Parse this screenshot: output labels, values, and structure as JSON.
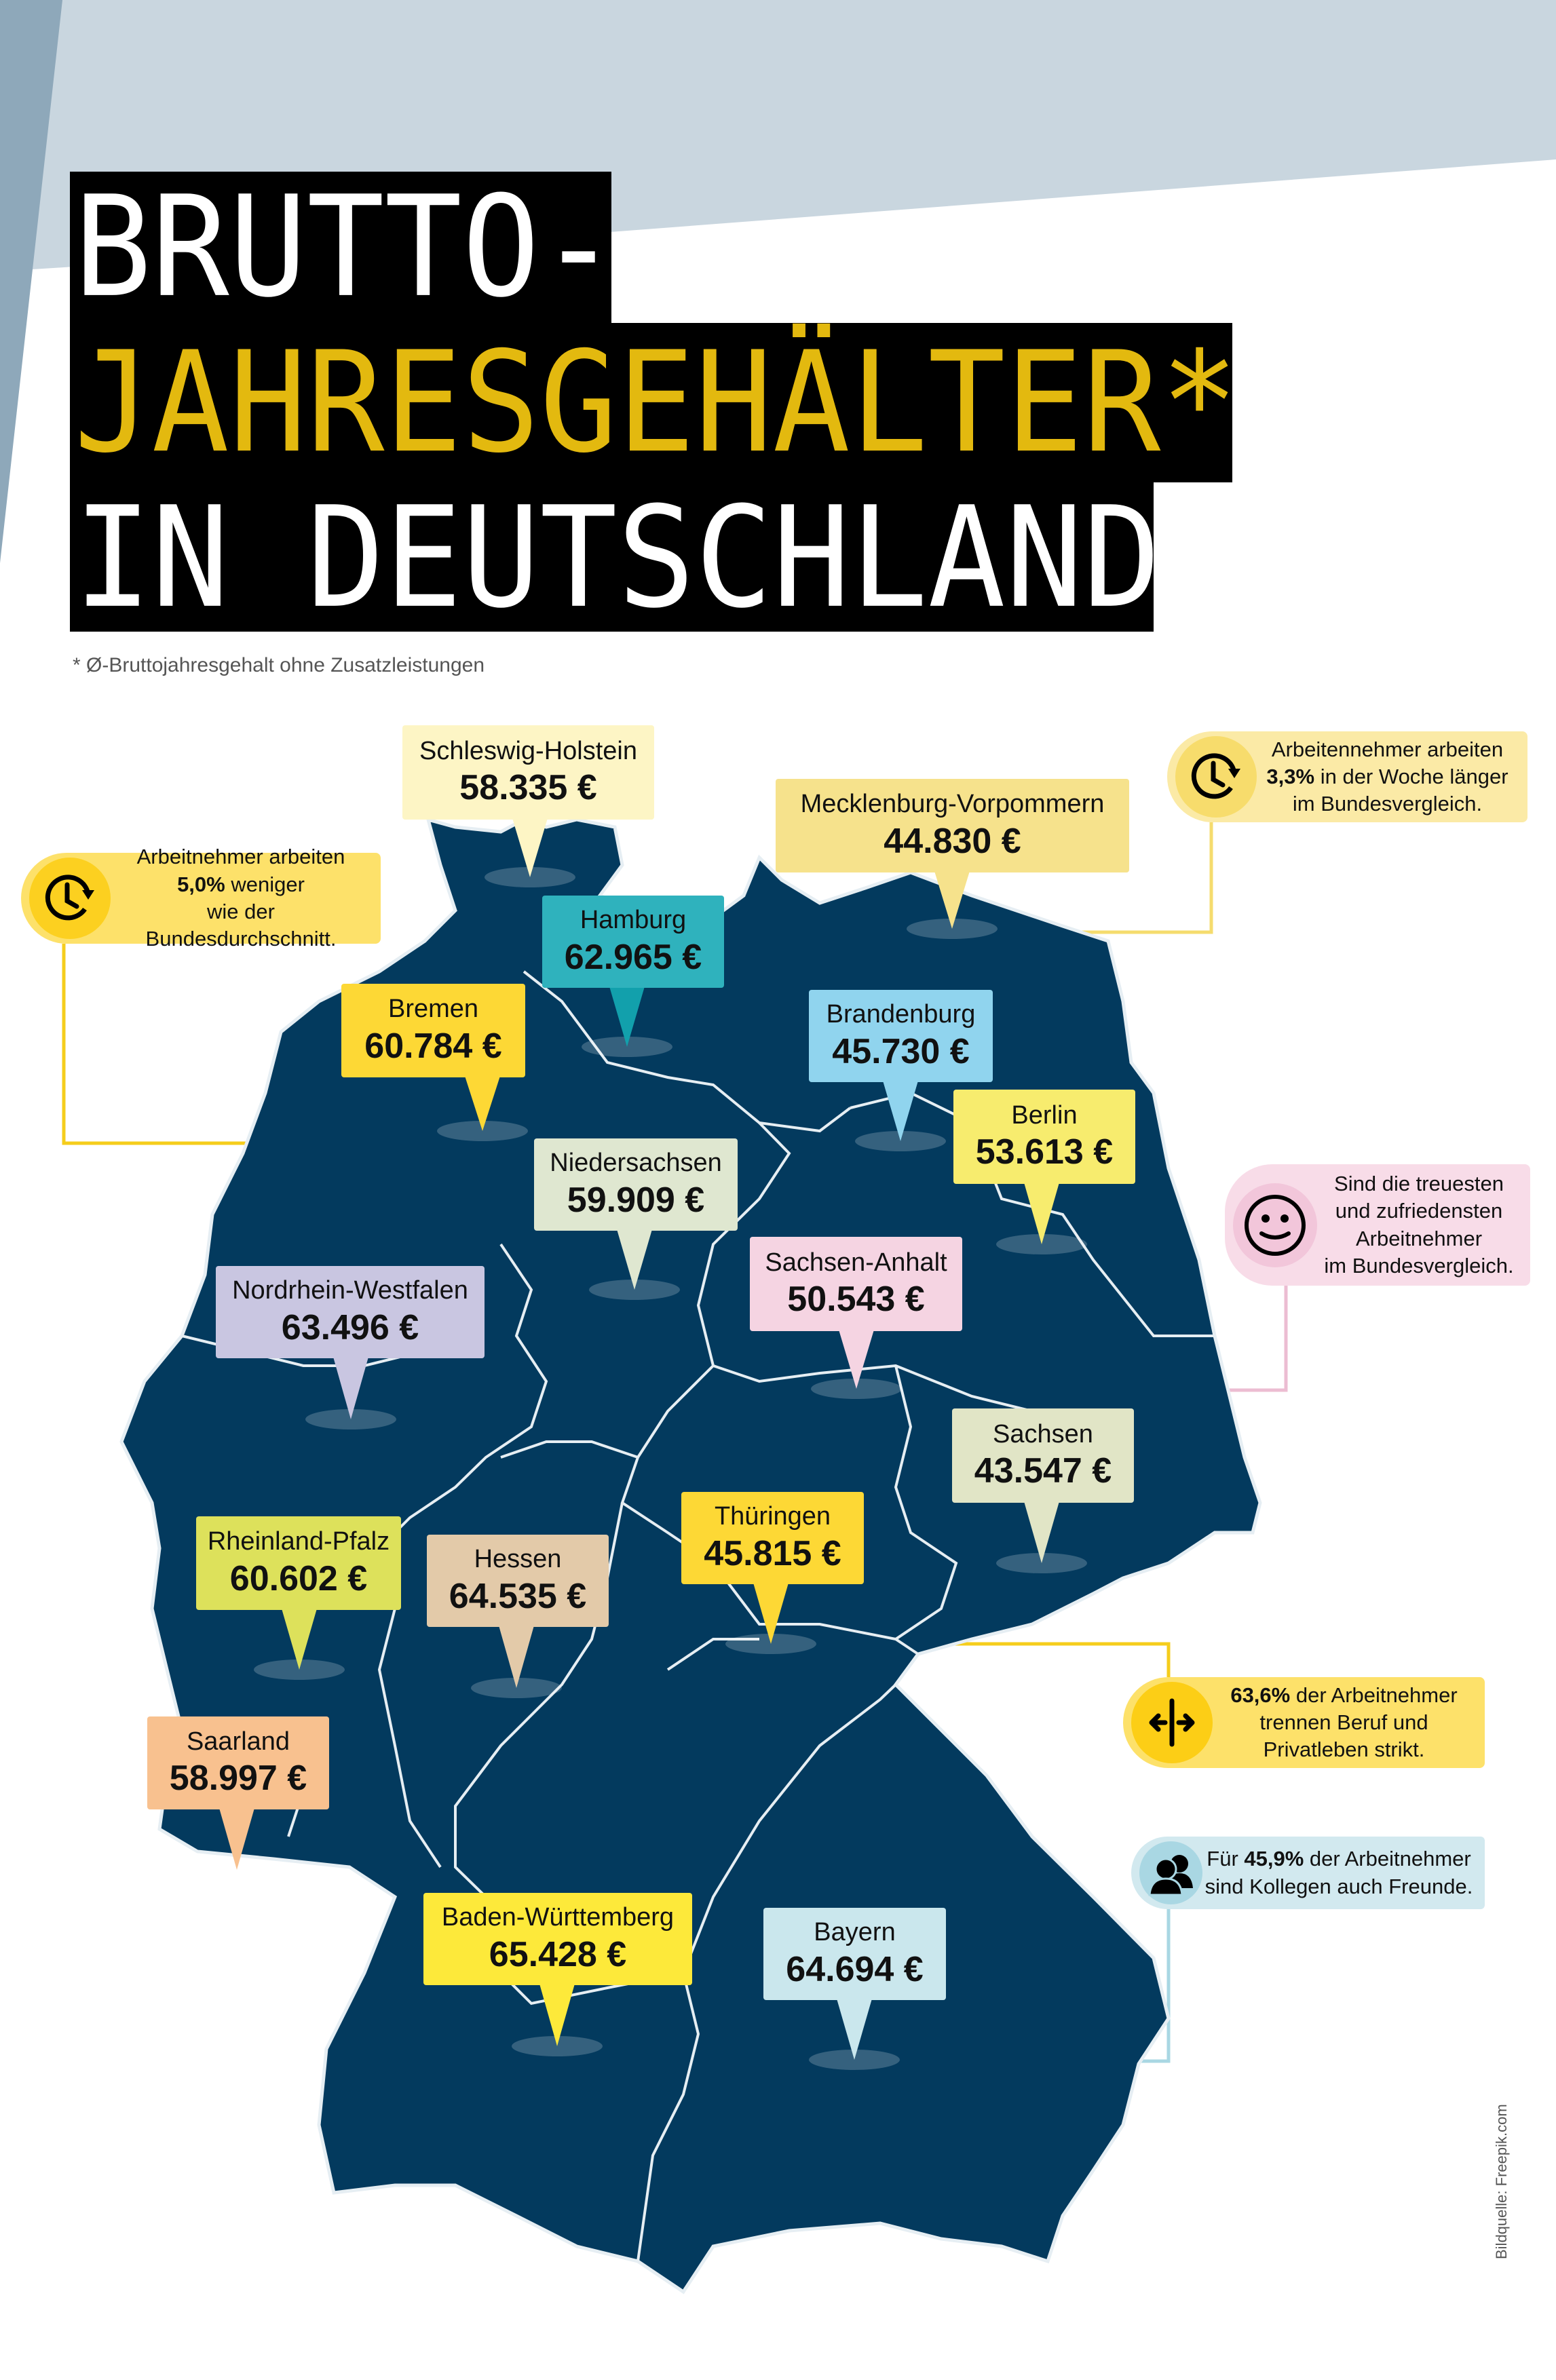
{
  "title": {
    "line1": "BRUTTO-",
    "line2": "JAHRESGEHÄLTER*",
    "line3": "IN DEUTSCHLAND",
    "line1_color": "#ffffff",
    "line2_color": "#e3b90f",
    "line3_color": "#ffffff"
  },
  "footnote": "* Ø-Bruttojahresgehalt ohne Zusatzleistungen",
  "colors": {
    "map": "#033a5e",
    "border": "#e6eef3",
    "bg_light": "#c9d6df",
    "bg_dark": "#8ea8ba"
  },
  "states": [
    {
      "name": "Schleswig-Holstein",
      "value": "58.335 €",
      "color": "#fdf5c5"
    },
    {
      "name": "Mecklenburg-Vorpommern",
      "value": "44.830 €",
      "color": "#f6e28c"
    },
    {
      "name": "Hamburg",
      "value": "62.965 €",
      "color": "#2fb2bd",
      "pointer": "#12a0ac"
    },
    {
      "name": "Bremen",
      "value": "60.784 €",
      "color": "#fdd835"
    },
    {
      "name": "Brandenburg",
      "value": "45.730 €",
      "color": "#90d4ee"
    },
    {
      "name": "Berlin",
      "value": "53.613 €",
      "color": "#f7ec6e"
    },
    {
      "name": "Niedersachsen",
      "value": "59.909 €",
      "color": "#dfe7d0"
    },
    {
      "name": "Sachsen-Anhalt",
      "value": "50.543 €",
      "color": "#f5d4e2"
    },
    {
      "name": "Nordrhein-Westfalen",
      "value": "63.496 €",
      "color": "#c9c6e1"
    },
    {
      "name": "Sachsen",
      "value": "43.547 €",
      "color": "#e1e5c6"
    },
    {
      "name": "Thüringen",
      "value": "45.815 €",
      "color": "#fdd835"
    },
    {
      "name": "Rheinland-Pfalz",
      "value": "60.602 €",
      "color": "#dde15b"
    },
    {
      "name": "Hessen",
      "value": "64.535 €",
      "color": "#e3caa9"
    },
    {
      "name": "Saarland",
      "value": "58.997 €",
      "color": "#f8c18f"
    },
    {
      "name": "Baden-Württemberg",
      "value": "65.428 €",
      "color": "#fde93a"
    },
    {
      "name": "Bayern",
      "value": "64.694 €",
      "color": "#cae7ed"
    }
  ],
  "facts": [
    {
      "icon": "clock-icon",
      "color": "#fde16a",
      "circle": "#fcd020",
      "line": "#f5cd1c",
      "lines": [
        [
          {
            "t": "Arbeitnehmer arbeiten"
          }
        ],
        [
          {
            "t": "5,0%",
            "b": true
          },
          {
            "t": " weniger"
          }
        ],
        [
          {
            "t": "wie der Bundesdurchschnitt."
          }
        ]
      ]
    },
    {
      "icon": "clock-icon",
      "color": "#fbeaa6",
      "circle": "#f7dc6c",
      "line": "#f5dc6e",
      "lines": [
        [
          {
            "t": "Arbeitennehmer arbeiten"
          }
        ],
        [
          {
            "t": "3,3%",
            "b": true
          },
          {
            "t": " in der Woche länger"
          }
        ],
        [
          {
            "t": "im Bundesvergleich."
          }
        ]
      ]
    },
    {
      "icon": "smiley-icon",
      "color": "#f8dce8",
      "circle": "#f2c6da",
      "line": "#ecbdd2",
      "lines": [
        [
          {
            "t": "Sind die treuesten"
          }
        ],
        [
          {
            "t": "und zufriedensten"
          }
        ],
        [
          {
            "t": "Arbeitnehmer"
          }
        ],
        [
          {
            "t": "im Bundesvergleich."
          }
        ]
      ]
    },
    {
      "icon": "split-arrows-icon",
      "color": "#fde16a",
      "circle": "#fcce16",
      "line": "#f5cd1c",
      "lines": [
        [
          {
            "t": "63,6%",
            "b": true
          },
          {
            "t": " der Arbeitnehmer"
          }
        ],
        [
          {
            "t": "trennen Beruf und"
          }
        ],
        [
          {
            "t": "Privatleben strikt."
          }
        ]
      ]
    },
    {
      "icon": "people-icon",
      "color": "#d2e9ef",
      "circle": "#a9d7e3",
      "line": "#a9d7e3",
      "lines": [
        [
          {
            "t": "Für "
          },
          {
            "t": "45,9%",
            "b": true
          },
          {
            "t": " der Arbeitnehmer"
          }
        ],
        [
          {
            "t": "sind Kollegen auch Freunde."
          }
        ]
      ]
    }
  ],
  "credit": "Bildquelle: Freepik.com"
}
